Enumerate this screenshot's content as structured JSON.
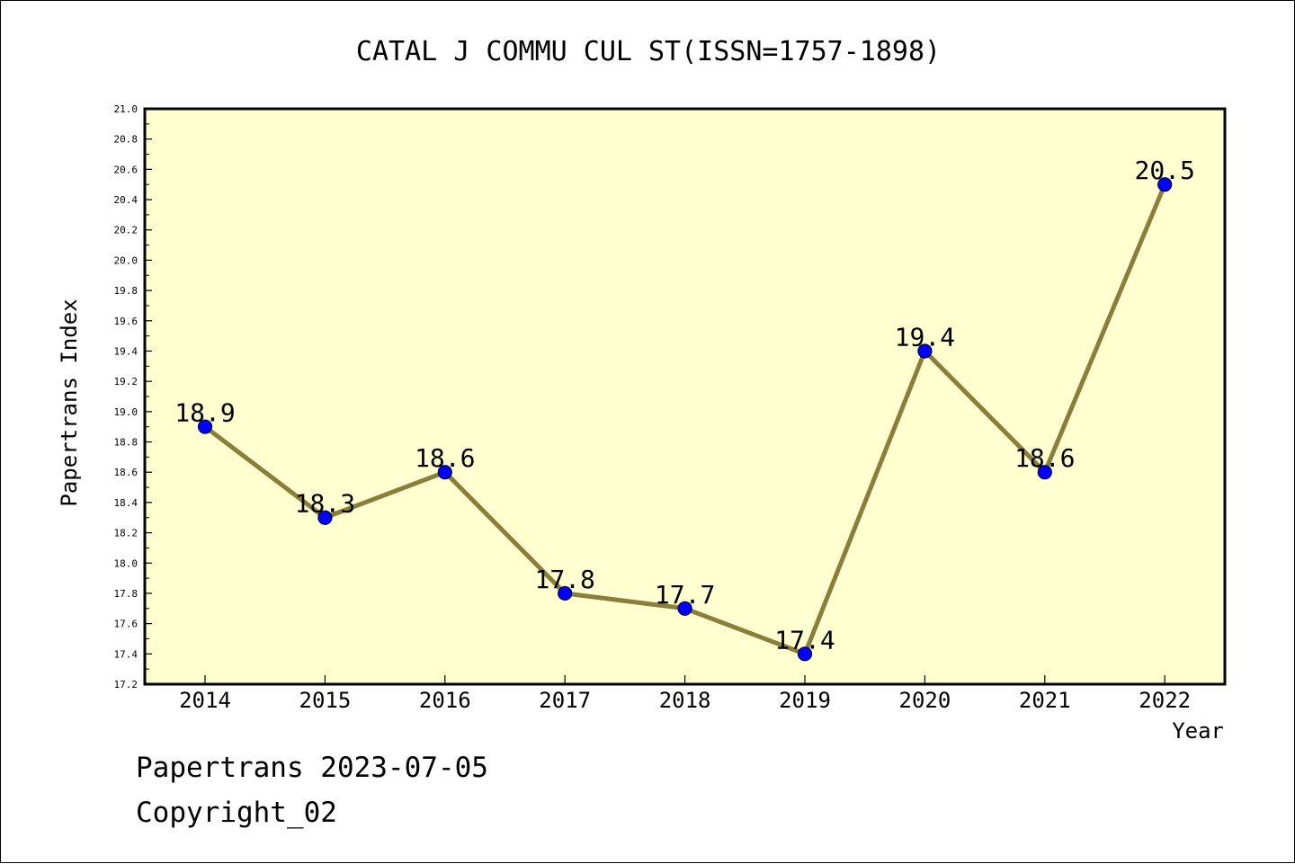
{
  "chart_data": {
    "type": "line",
    "title": "CATAL J COMMU CUL ST(ISSN=1757-1898)",
    "xlabel": "Year",
    "ylabel": "Papertrans Index",
    "categories": [
      "2014",
      "2015",
      "2016",
      "2017",
      "2018",
      "2019",
      "2020",
      "2021",
      "2022"
    ],
    "series": [
      {
        "values": [
          18.9,
          18.3,
          18.6,
          17.8,
          17.7,
          17.4,
          19.4,
          18.6,
          20.5
        ],
        "data_labels": [
          "18.9",
          "18.3",
          "18.6",
          "17.8",
          "17.7",
          "17.4",
          "19.4",
          "18.6",
          "20.5"
        ]
      }
    ],
    "ylim": [
      17.2,
      21.0
    ],
    "yticks": [
      "17.2",
      "17.4",
      "17.6",
      "17.8",
      "18.0",
      "18.2",
      "18.4",
      "18.6",
      "18.8",
      "19.0",
      "19.2",
      "19.4",
      "19.6",
      "19.8",
      "20.0",
      "20.2",
      "20.4",
      "20.6",
      "20.8",
      "21.0"
    ],
    "grid": false,
    "legend": "none",
    "colors": {
      "plot_background": "#ffffd0",
      "line": "#8b7d3a",
      "marker": "#0000ff"
    }
  },
  "footer": {
    "line1": "Papertrans 2023-07-05",
    "line2": "Copyright_02"
  }
}
